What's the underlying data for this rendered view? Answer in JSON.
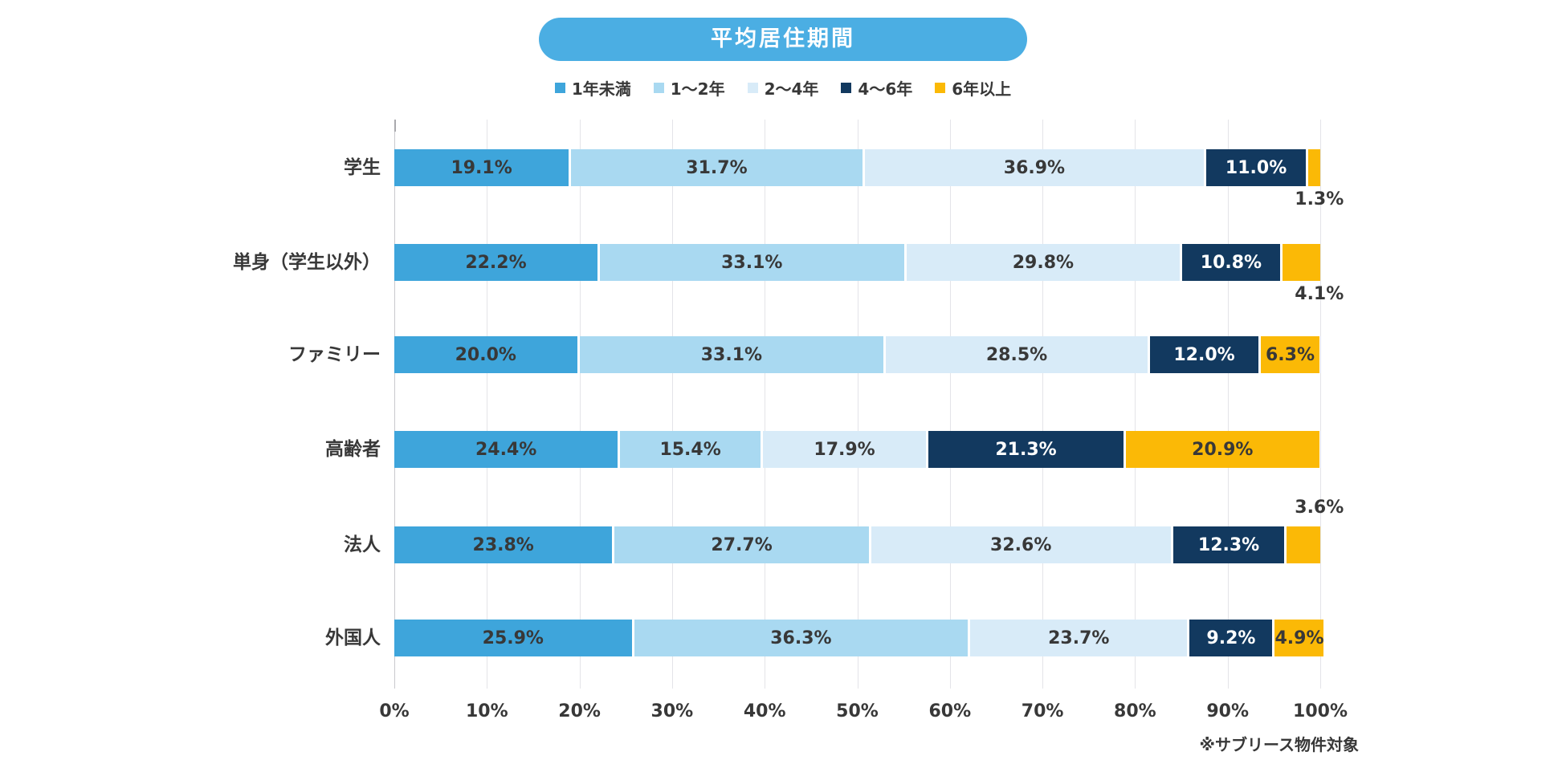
{
  "chart_data": {
    "type": "bar",
    "orientation": "horizontal",
    "stacked": true,
    "title": "平均居住期間",
    "footnote": "※サブリース物件対象",
    "xlim": [
      0,
      100
    ],
    "x_tick_labels": [
      "0%",
      "10%",
      "20%",
      "30%",
      "40%",
      "50%",
      "60%",
      "70%",
      "80%",
      "90%",
      "100%"
    ],
    "grid": true,
    "legend_position": "top",
    "categories": [
      "学生",
      "単身（学生以外）",
      "ファミリー",
      "高齢者",
      "法人",
      "外国人"
    ],
    "series": [
      {
        "name": "1年未満",
        "color": "#3EA5DB",
        "label_color": "#383838",
        "values": [
          19.1,
          22.2,
          20.0,
          24.4,
          23.8,
          25.9
        ]
      },
      {
        "name": "1～2年",
        "color": "#A9D9F1",
        "label_color": "#383838",
        "values": [
          31.7,
          33.1,
          33.1,
          15.4,
          27.7,
          36.3
        ]
      },
      {
        "name": "2～4年",
        "color": "#D8EBF8",
        "label_color": "#383838",
        "values": [
          36.9,
          29.8,
          28.5,
          17.9,
          32.6,
          23.7
        ]
      },
      {
        "name": "4～6年",
        "color": "#12395F",
        "label_color": "#FFFFFF",
        "values": [
          11.0,
          10.8,
          12.0,
          21.3,
          12.3,
          9.2
        ]
      },
      {
        "name": "6年以上",
        "color": "#FBB906",
        "label_color": "#383838",
        "values": [
          1.3,
          4.1,
          6.3,
          20.9,
          3.6,
          4.9
        ]
      }
    ],
    "value_label_format": "0.0%",
    "outside_labels": [
      {
        "category_index": 0,
        "series_index": 4,
        "position": "below"
      },
      {
        "category_index": 1,
        "series_index": 4,
        "position": "below"
      },
      {
        "category_index": 4,
        "series_index": 4,
        "position": "above"
      }
    ],
    "colors": {
      "title_pill": "#4BAEE3",
      "grid_line": "#E4E4E8",
      "zero_line": "#C9C9CD",
      "tick": "#A9A9AD",
      "text": "#383838"
    }
  }
}
